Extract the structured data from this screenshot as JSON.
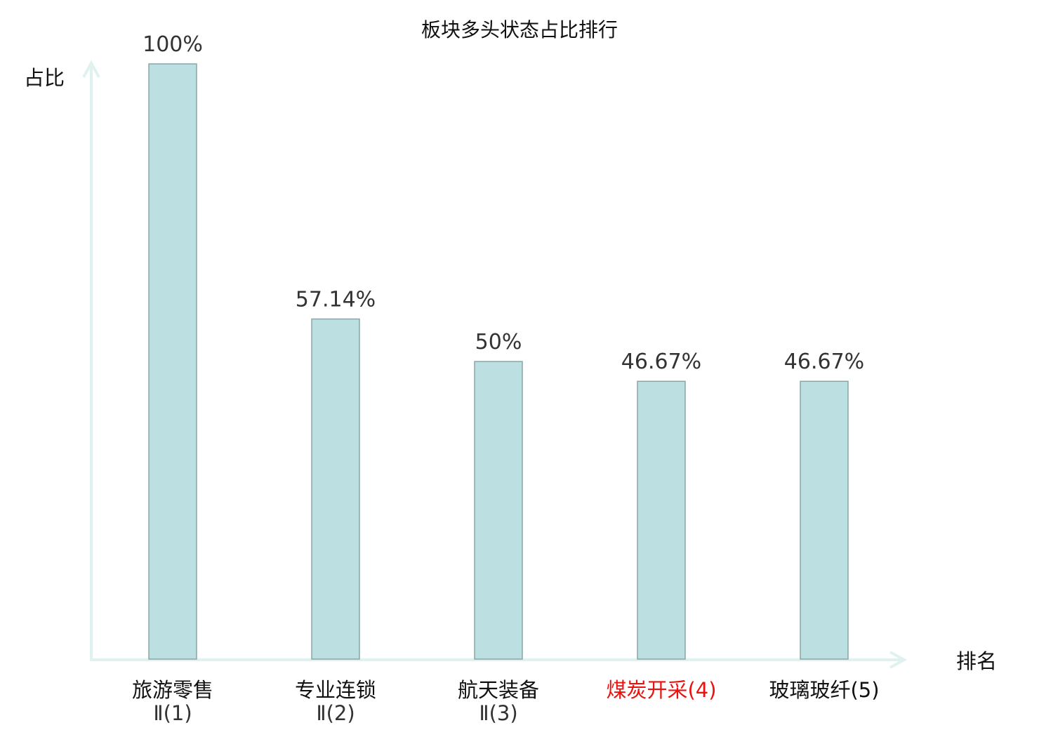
{
  "chart_data": {
    "type": "bar",
    "title": "板块多头状态占比排行",
    "xlabel": "排名",
    "ylabel": "占比",
    "ylim": [
      0,
      100
    ],
    "grid": false,
    "categories": [
      {
        "name": "旅游零售",
        "suffix": "Ⅱ(1)",
        "highlight": false
      },
      {
        "name": "专业连锁",
        "suffix": "Ⅱ(2)",
        "highlight": false
      },
      {
        "name": "航天装备",
        "suffix": "Ⅱ(3)",
        "highlight": false
      },
      {
        "name": "煤炭开采(4)",
        "suffix": "",
        "highlight": true
      },
      {
        "name": "玻璃玻纤(5)",
        "suffix": "",
        "highlight": false
      }
    ],
    "values": [
      100,
      57.14,
      50,
      46.67,
      46.67
    ],
    "labels": [
      "100%",
      "57.14%",
      "50%",
      "46.67%",
      "46.67%"
    ],
    "colors": {
      "bar": "#bce0e2",
      "bar_edge": "#8aa5a5",
      "axis": "#dff2ef",
      "highlight": "#e8120f",
      "text": "#111111"
    }
  }
}
